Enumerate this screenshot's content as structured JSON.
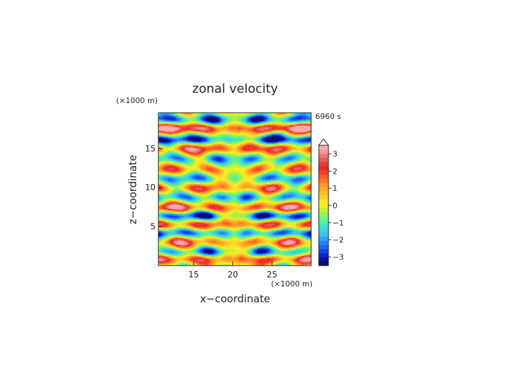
{
  "chart_data": {
    "type": "heatmap",
    "title": "zonal velocity",
    "xlabel": "x−coordinate",
    "ylabel": "z−coordinate",
    "x_unit": "(×1000 m)",
    "y_unit": "(×1000 m)",
    "time_label": "6960 s",
    "xlim": [
      10.5,
      30
    ],
    "ylim": [
      0,
      19.6
    ],
    "x_ticks": [
      15,
      20,
      25
    ],
    "y_ticks": [
      5,
      10,
      15
    ],
    "colorbar": {
      "levels": [
        -3.5,
        -3.25,
        -3,
        -2.75,
        -2.5,
        -2.25,
        -2,
        -1.75,
        -1.5,
        -1.25,
        -1,
        -0.75,
        -0.5,
        -0.25,
        0,
        0.25,
        0.5,
        0.75,
        1,
        1.25,
        1.5,
        1.75,
        2,
        2.25,
        2.5,
        2.75,
        3,
        3.25,
        3.5
      ],
      "tick_labels": [
        "3",
        "2",
        "1",
        "0",
        "−1",
        "−2",
        "−3"
      ],
      "tick_values": [
        3,
        2,
        1,
        0,
        -1,
        -2,
        -3
      ],
      "colors": [
        "#0a0a78",
        "#0a14a0",
        "#0a28c8",
        "#1446e6",
        "#1e64f0",
        "#2882f5",
        "#32a0f5",
        "#3cbef5",
        "#3cd2e6",
        "#3ce6c8",
        "#50f0a0",
        "#78f078",
        "#a0f050",
        "#c8f032",
        "#f0f028",
        "#fae628",
        "#ffd228",
        "#ffbe28",
        "#ffa828",
        "#ff9628",
        "#ff7828",
        "#ff5a28",
        "#f53c28",
        "#eb2828",
        "#e63c3c",
        "#eb5a5a",
        "#f07878",
        "#f59696",
        "#faaaaa"
      ]
    },
    "field_description_bands_z": [
      0.8,
      1.8,
      3.0,
      4.2,
      5.3,
      6.4,
      7.5,
      8.8,
      10.0,
      11.2,
      12.4,
      13.7,
      15.0,
      16.2,
      17.6,
      18.8
    ],
    "field_description_band_values": [
      2.2,
      -1.6,
      1.8,
      -2.2,
      2.0,
      -2.4,
      2.4,
      -1.8,
      1.6,
      -1.4,
      1.4,
      -1.6,
      2.2,
      -2.6,
      3.2,
      -2.4
    ]
  }
}
